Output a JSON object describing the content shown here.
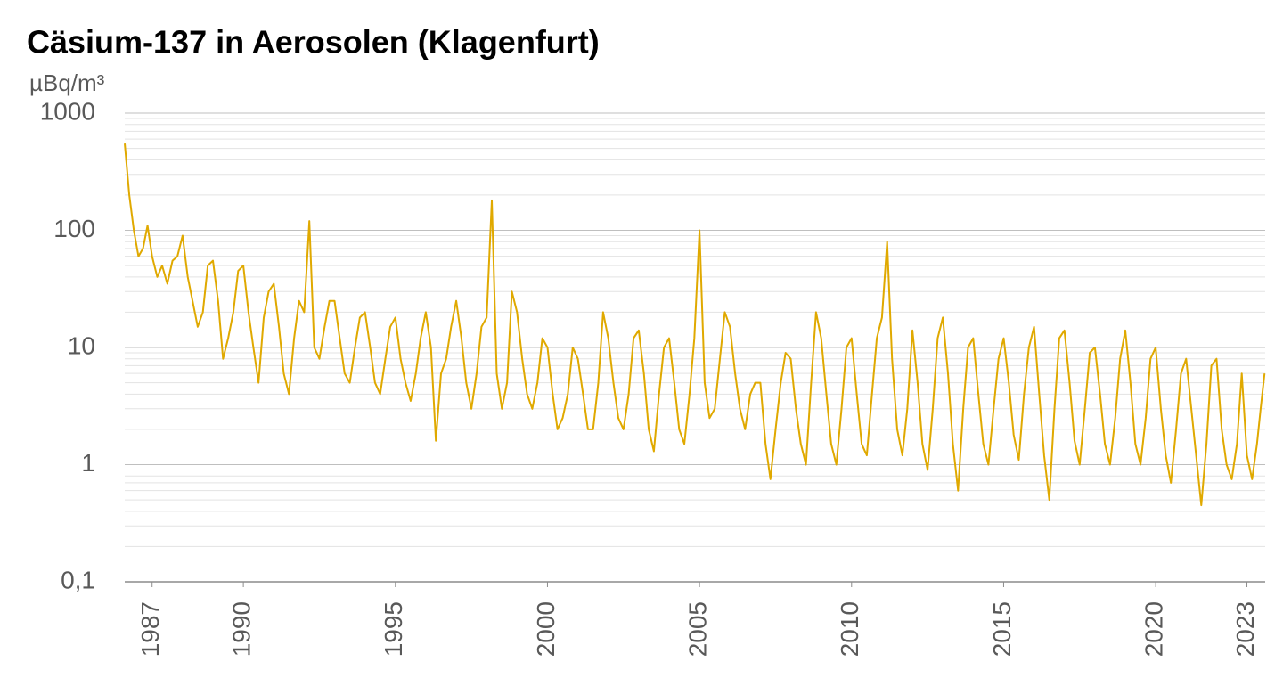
{
  "chart_data": {
    "type": "line",
    "title": "Cäsium-137 in Aerosolen (Klagenfurt)",
    "y_label": "µBq/m³",
    "y_scale": "log",
    "grid": true,
    "color": "#e0a900",
    "xlim": [
      1986.1,
      2023.6
    ],
    "xticks": [
      1987,
      1990,
      1995,
      2000,
      2005,
      2010,
      2015,
      2020,
      2023
    ],
    "ylim": [
      0.1,
      1000
    ],
    "yticks": [
      {
        "value": 0.1,
        "label": "0,1"
      },
      1,
      10,
      100,
      1000
    ],
    "minor_yticks": [
      0.2,
      0.3,
      0.4,
      0.5,
      0.6,
      0.7,
      0.8,
      0.9,
      2,
      3,
      4,
      5,
      6,
      7,
      8,
      9,
      20,
      30,
      40,
      50,
      60,
      70,
      80,
      90,
      200,
      300,
      400,
      500,
      600,
      700,
      800,
      900
    ],
    "x": [
      1986.1,
      1986.25,
      1986.4,
      1986.55,
      1986.7,
      1986.85,
      1987,
      1987.17,
      1987.33,
      1987.5,
      1987.67,
      1987.83,
      1988,
      1988.17,
      1988.33,
      1988.5,
      1988.67,
      1988.83,
      1989,
      1989.17,
      1989.33,
      1989.5,
      1989.67,
      1989.83,
      1990,
      1990.17,
      1990.33,
      1990.5,
      1990.67,
      1990.83,
      1991,
      1991.17,
      1991.33,
      1991.5,
      1991.67,
      1991.83,
      1992,
      1992.17,
      1992.33,
      1992.5,
      1992.67,
      1992.83,
      1993,
      1993.17,
      1993.33,
      1993.5,
      1993.67,
      1993.83,
      1994,
      1994.17,
      1994.33,
      1994.5,
      1994.67,
      1994.83,
      1995,
      1995.17,
      1995.33,
      1995.5,
      1995.67,
      1995.83,
      1996,
      1996.17,
      1996.33,
      1996.5,
      1996.67,
      1996.83,
      1997,
      1997.17,
      1997.33,
      1997.5,
      1997.67,
      1997.83,
      1998,
      1998.17,
      1998.33,
      1998.5,
      1998.67,
      1998.83,
      1999,
      1999.17,
      1999.33,
      1999.5,
      1999.67,
      1999.83,
      2000,
      2000.17,
      2000.33,
      2000.5,
      2000.67,
      2000.83,
      2001,
      2001.17,
      2001.33,
      2001.5,
      2001.67,
      2001.83,
      2002,
      2002.17,
      2002.33,
      2002.5,
      2002.67,
      2002.83,
      2003,
      2003.17,
      2003.33,
      2003.5,
      2003.67,
      2003.83,
      2004,
      2004.17,
      2004.33,
      2004.5,
      2004.67,
      2004.83,
      2005,
      2005.17,
      2005.33,
      2005.5,
      2005.67,
      2005.83,
      2006,
      2006.17,
      2006.33,
      2006.5,
      2006.67,
      2006.83,
      2007,
      2007.17,
      2007.33,
      2007.5,
      2007.67,
      2007.83,
      2008,
      2008.17,
      2008.33,
      2008.5,
      2008.67,
      2008.83,
      2009,
      2009.17,
      2009.33,
      2009.5,
      2009.67,
      2009.83,
      2010,
      2010.17,
      2010.33,
      2010.5,
      2010.67,
      2010.83,
      2011,
      2011.17,
      2011.33,
      2011.5,
      2011.67,
      2011.83,
      2012,
      2012.17,
      2012.33,
      2012.5,
      2012.67,
      2012.83,
      2013,
      2013.17,
      2013.33,
      2013.5,
      2013.67,
      2013.83,
      2014,
      2014.17,
      2014.33,
      2014.5,
      2014.67,
      2014.83,
      2015,
      2015.17,
      2015.33,
      2015.5,
      2015.67,
      2015.83,
      2016,
      2016.17,
      2016.33,
      2016.5,
      2016.67,
      2016.83,
      2017,
      2017.17,
      2017.33,
      2017.5,
      2017.67,
      2017.83,
      2018,
      2018.17,
      2018.33,
      2018.5,
      2018.67,
      2018.83,
      2019,
      2019.17,
      2019.33,
      2019.5,
      2019.67,
      2019.83,
      2020,
      2020.17,
      2020.33,
      2020.5,
      2020.67,
      2020.83,
      2021,
      2021.17,
      2021.33,
      2021.5,
      2021.67,
      2021.83,
      2022,
      2022.17,
      2022.33,
      2022.5,
      2022.67,
      2022.83,
      2023,
      2023.17,
      2023.33,
      2023.45,
      2023.58
    ],
    "values": [
      550,
      200,
      100,
      60,
      70,
      110,
      60,
      40,
      50,
      35,
      55,
      60,
      90,
      40,
      25,
      15,
      20,
      50,
      55,
      25,
      8,
      12,
      20,
      45,
      50,
      20,
      10,
      5,
      18,
      30,
      35,
      15,
      6,
      4,
      12,
      25,
      20,
      120,
      10,
      8,
      15,
      25,
      25,
      12,
      6,
      5,
      10,
      18,
      20,
      10,
      5,
      4,
      8,
      15,
      18,
      8,
      5,
      3.5,
      6,
      12,
      20,
      10,
      1.6,
      6,
      8,
      15,
      25,
      12,
      5,
      3,
      6,
      15,
      18,
      180,
      6,
      3,
      5,
      30,
      20,
      8,
      4,
      3,
      5,
      12,
      10,
      4,
      2,
      2.5,
      4,
      10,
      8,
      4,
      2,
      2,
      5,
      20,
      12,
      5,
      2.5,
      2,
      4,
      12,
      14,
      6,
      2,
      1.3,
      4,
      10,
      12,
      5,
      2,
      1.5,
      4,
      12,
      100,
      5,
      2.5,
      3,
      8,
      20,
      15,
      6,
      3,
      2,
      4,
      5,
      5,
      1.5,
      0.75,
      2,
      5,
      9,
      8,
      3,
      1.5,
      1,
      5,
      20,
      12,
      4,
      1.5,
      1,
      3,
      10,
      12,
      4,
      1.5,
      1.2,
      4,
      12,
      18,
      80,
      8,
      2,
      1.2,
      3,
      14,
      5,
      1.5,
      0.9,
      3,
      12,
      18,
      6,
      1.5,
      0.6,
      3,
      10,
      12,
      4,
      1.5,
      1,
      3,
      8,
      12,
      5,
      1.8,
      1.1,
      4,
      10,
      15,
      4,
      1.2,
      0.5,
      3,
      12,
      14,
      5,
      1.6,
      1,
      3,
      9,
      10,
      4,
      1.5,
      1,
      2.5,
      8,
      14,
      5,
      1.5,
      1,
      2.5,
      8,
      10,
      3,
      1.2,
      0.7,
      2,
      6,
      8,
      3,
      1.2,
      0.45,
      1.5,
      7,
      8,
      2,
      1,
      0.75,
      1.5,
      6,
      1.2,
      0.75,
      1.5,
      3,
      6
    ]
  }
}
